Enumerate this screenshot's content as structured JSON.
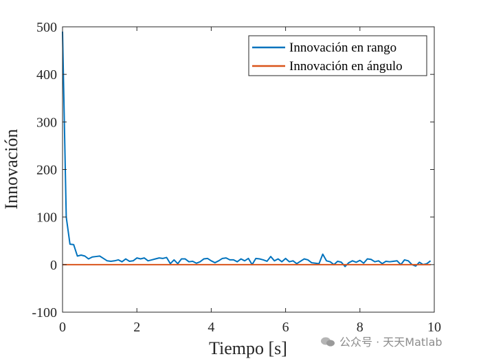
{
  "watermark": "公众号 · 天天Matlab",
  "chart_data": {
    "type": "line",
    "title": "",
    "xlabel": "Tiempo [s]",
    "ylabel": "Innovación",
    "xlim": [
      0,
      10
    ],
    "ylim": [
      -100,
      500
    ],
    "xticks": [
      0,
      2,
      4,
      6,
      8,
      10
    ],
    "yticks": [
      -100,
      0,
      100,
      200,
      300,
      400,
      500
    ],
    "grid": false,
    "legend_position": "top-right",
    "series": [
      {
        "name": "Innovación en rango",
        "color": "#0072BD",
        "x": [
          0,
          0.1,
          0.2,
          0.3,
          0.4,
          0.5,
          0.6,
          0.7,
          0.8,
          0.9,
          1.0,
          1.1,
          1.2,
          1.3,
          1.4,
          1.5,
          1.6,
          1.7,
          1.8,
          1.9,
          2.0,
          2.1,
          2.2,
          2.3,
          2.4,
          2.5,
          2.6,
          2.7,
          2.8,
          2.9,
          3.0,
          3.1,
          3.2,
          3.3,
          3.4,
          3.5,
          3.6,
          3.7,
          3.8,
          3.9,
          4.0,
          4.1,
          4.2,
          4.3,
          4.4,
          4.5,
          4.6,
          4.7,
          4.8,
          4.9,
          5.0,
          5.1,
          5.2,
          5.3,
          5.4,
          5.5,
          5.6,
          5.7,
          5.8,
          5.9,
          6.0,
          6.1,
          6.2,
          6.3,
          6.4,
          6.5,
          6.6,
          6.7,
          6.8,
          6.9,
          7.0,
          7.1,
          7.2,
          7.3,
          7.4,
          7.5,
          7.6,
          7.7,
          7.8,
          7.9,
          8.0,
          8.1,
          8.2,
          8.3,
          8.4,
          8.5,
          8.6,
          8.7,
          8.8,
          8.9,
          9.0,
          9.1,
          9.2,
          9.3,
          9.4,
          9.5,
          9.6,
          9.7,
          9.8,
          9.9
        ],
        "values": [
          490,
          100,
          43,
          42,
          18,
          20,
          18,
          12,
          16,
          17,
          18,
          13,
          8,
          7,
          8,
          10,
          6,
          12,
          7,
          8,
          14,
          12,
          14,
          8,
          10,
          12,
          14,
          13,
          15,
          2,
          10,
          2,
          12,
          12,
          6,
          7,
          3,
          6,
          12,
          13,
          8,
          4,
          8,
          13,
          14,
          10,
          10,
          6,
          12,
          8,
          13,
          0,
          13,
          12,
          10,
          7,
          17,
          8,
          12,
          6,
          13,
          6,
          8,
          2,
          7,
          12,
          10,
          4,
          3,
          2,
          22,
          8,
          6,
          0,
          7,
          5,
          -4,
          4,
          8,
          5,
          9,
          3,
          12,
          11,
          6,
          8,
          2,
          7,
          6,
          7,
          8,
          0,
          10,
          8,
          0,
          -3,
          5,
          0,
          2,
          8
        ]
      },
      {
        "name": "Innovación en ángulo",
        "color": "#D95319",
        "x": [
          0,
          9.9
        ],
        "values": [
          0,
          0
        ]
      }
    ]
  }
}
